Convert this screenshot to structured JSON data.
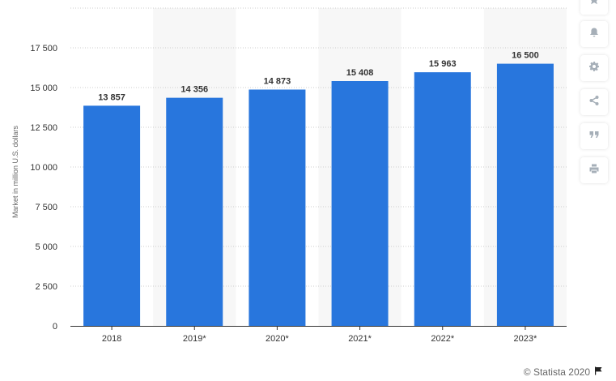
{
  "chart_data": {
    "type": "bar",
    "categories": [
      "2018",
      "2019*",
      "2020*",
      "2021*",
      "2022*",
      "2023*"
    ],
    "values": [
      13857,
      14356,
      14873,
      15408,
      15963,
      16500
    ],
    "data_labels": [
      "13 857",
      "14 356",
      "14 873",
      "15 408",
      "15 963",
      "16 500"
    ],
    "ylabel": "Market in million U.S. dollars",
    "xlabel": "",
    "ylim": [
      0,
      20000
    ],
    "yticks": [
      0,
      2500,
      5000,
      7500,
      10000,
      12500,
      15000,
      17500
    ],
    "ytick_labels": [
      "0",
      "2 500",
      "5 000",
      "7 500",
      "10 000",
      "12 500",
      "15 000",
      "17 500"
    ],
    "grid": true,
    "bar_color": "#2876dd",
    "band_color": "#f7f7f7"
  },
  "toolbar": {
    "items": [
      {
        "name": "bookmark",
        "icon": "star-icon"
      },
      {
        "name": "notify",
        "icon": "bell-icon"
      },
      {
        "name": "settings",
        "icon": "gear-icon"
      },
      {
        "name": "share",
        "icon": "share-icon"
      },
      {
        "name": "cite",
        "icon": "quote-icon"
      },
      {
        "name": "print",
        "icon": "print-icon"
      }
    ],
    "icon_color": "#a6afb8"
  },
  "credit": {
    "text": "© Statista 2020"
  }
}
